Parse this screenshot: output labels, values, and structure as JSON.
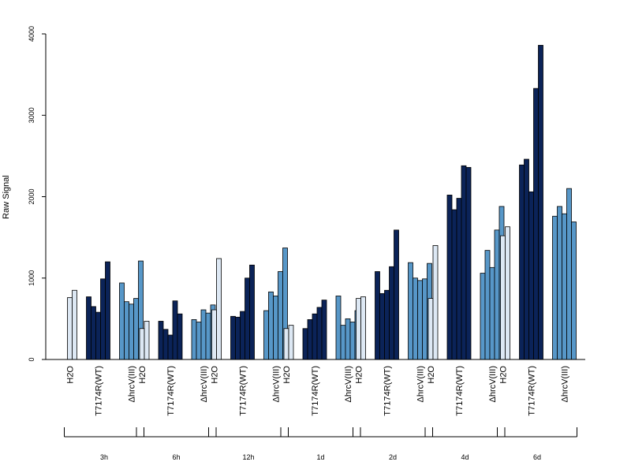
{
  "chart_data": {
    "type": "bar",
    "ylabel": "Raw Signal",
    "ylim": [
      0,
      4000
    ],
    "yticks": [
      0,
      1000,
      2000,
      3000,
      4000
    ],
    "ytick_labels": [
      "0",
      "1000",
      "2000",
      "3000",
      "4000"
    ],
    "colors": {
      "H2O": "#dde8f4",
      "T7174R(WT)": "#0b2358",
      "ΔhrcV(III)": "#5797c8"
    },
    "groups": [
      {
        "time": "3h",
        "treatments": [
          {
            "name": "H2O",
            "values": [
              0,
              760,
              850
            ]
          },
          {
            "name": "T7174R(WT)",
            "values": [
              770,
              650,
              580,
              990,
              1200
            ]
          },
          {
            "name": "ΔhrcV(III)",
            "values": [
              940,
              710,
              680,
              750,
              1210
            ]
          }
        ]
      },
      {
        "time": "6h",
        "treatments": [
          {
            "name": "H2O",
            "values": [
              0,
              380,
              470
            ]
          },
          {
            "name": "T7174R(WT)",
            "values": [
              470,
              370,
              300,
              720,
              560
            ]
          },
          {
            "name": "ΔhrcV(III)",
            "values": [
              490,
              460,
              610,
              570,
              670
            ]
          }
        ]
      },
      {
        "time": "12h",
        "treatments": [
          {
            "name": "H2O",
            "values": [
              0,
              610,
              1240
            ]
          },
          {
            "name": "T7174R(WT)",
            "values": [
              530,
              520,
              590,
              1000,
              1160
            ]
          },
          {
            "name": "ΔhrcV(III)",
            "values": [
              600,
              830,
              780,
              1080,
              1370
            ]
          }
        ]
      },
      {
        "time": "1d",
        "treatments": [
          {
            "name": "H2O",
            "values": [
              0,
              380,
              420
            ]
          },
          {
            "name": "T7174R(WT)",
            "values": [
              380,
              490,
              560,
              640,
              730
            ]
          },
          {
            "name": "ΔhrcV(III)",
            "values": [
              780,
              420,
              500,
              460,
              600
            ]
          }
        ]
      },
      {
        "time": "2d",
        "treatments": [
          {
            "name": "H2O",
            "values": [
              0,
              750,
              770
            ]
          },
          {
            "name": "T7174R(WT)",
            "values": [
              1080,
              810,
              850,
              1140,
              1590
            ]
          },
          {
            "name": "ΔhrcV(III)",
            "values": [
              1190,
              1000,
              970,
              990,
              1180
            ]
          }
        ]
      },
      {
        "time": "4d",
        "treatments": [
          {
            "name": "H2O",
            "values": [
              0,
              750,
              1400
            ]
          },
          {
            "name": "T7174R(WT)",
            "values": [
              2020,
              1840,
              1980,
              2380,
              2360
            ]
          },
          {
            "name": "ΔhrcV(III)",
            "values": [
              1060,
              1340,
              1130,
              1590,
              1880
            ]
          }
        ]
      },
      {
        "time": "6d",
        "treatments": [
          {
            "name": "H2O",
            "values": [
              0,
              1520,
              1630
            ]
          },
          {
            "name": "T7174R(WT)",
            "values": [
              2390,
              2460,
              2060,
              3330,
              3860
            ]
          },
          {
            "name": "ΔhrcV(III)",
            "values": [
              1760,
              1880,
              1790,
              2100,
              1690
            ]
          }
        ]
      }
    ]
  }
}
